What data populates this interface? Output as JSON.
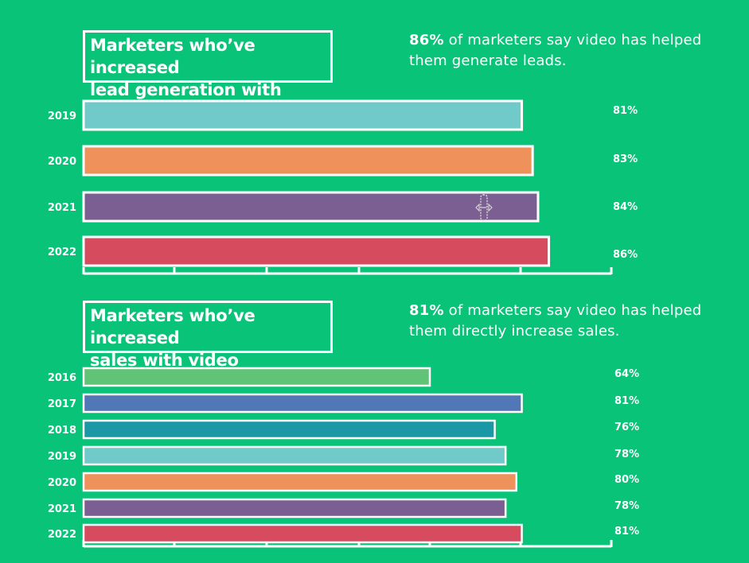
{
  "colors": {
    "background": "#09c378",
    "teal_light": "#6fcac9",
    "orange": "#ee915a",
    "purple": "#7b5f93",
    "red": "#d64c5e",
    "green": "#61c375",
    "blue": "#5277b7",
    "teal_dark": "#1a98a5"
  },
  "cursor": {
    "icon": "resize-cursor-icon"
  },
  "chart_data": [
    {
      "type": "bar",
      "orientation": "horizontal",
      "title_lines": [
        "Marketers who’ve increased",
        "lead generation with video"
      ],
      "stat": {
        "highlight": "86%",
        "line1_rest": " of marketers say video has helped",
        "line2": "them generate leads."
      },
      "categories": [
        "2019",
        "2020",
        "2021",
        "2022"
      ],
      "values": [
        81,
        83,
        84,
        86
      ],
      "value_labels": [
        "81%",
        "83%",
        "84%",
        "86%"
      ],
      "colors": [
        "#6fcac9",
        "#ee915a",
        "#7b5f93",
        "#d64c5e"
      ],
      "xlim": [
        0,
        100
      ],
      "grid": false
    },
    {
      "type": "bar",
      "orientation": "horizontal",
      "title_lines": [
        "Marketers who’ve increased",
        "sales with video"
      ],
      "stat": {
        "highlight": "81%",
        "line1_rest": " of marketers say video has helped",
        "line2": "them directly increase sales."
      },
      "categories": [
        "2016",
        "2017",
        "2018",
        "2019",
        "2020",
        "2021",
        "2022"
      ],
      "values": [
        64,
        81,
        76,
        78,
        80,
        78,
        81
      ],
      "value_labels": [
        "64%",
        "81%",
        "76%",
        "78%",
        "80%",
        "78%",
        "81%"
      ],
      "colors": [
        "#61c375",
        "#5277b7",
        "#1a98a5",
        "#6fcac9",
        "#ee915a",
        "#7b5f93",
        "#d64c5e"
      ],
      "xlim": [
        0,
        100
      ],
      "grid": false
    }
  ]
}
